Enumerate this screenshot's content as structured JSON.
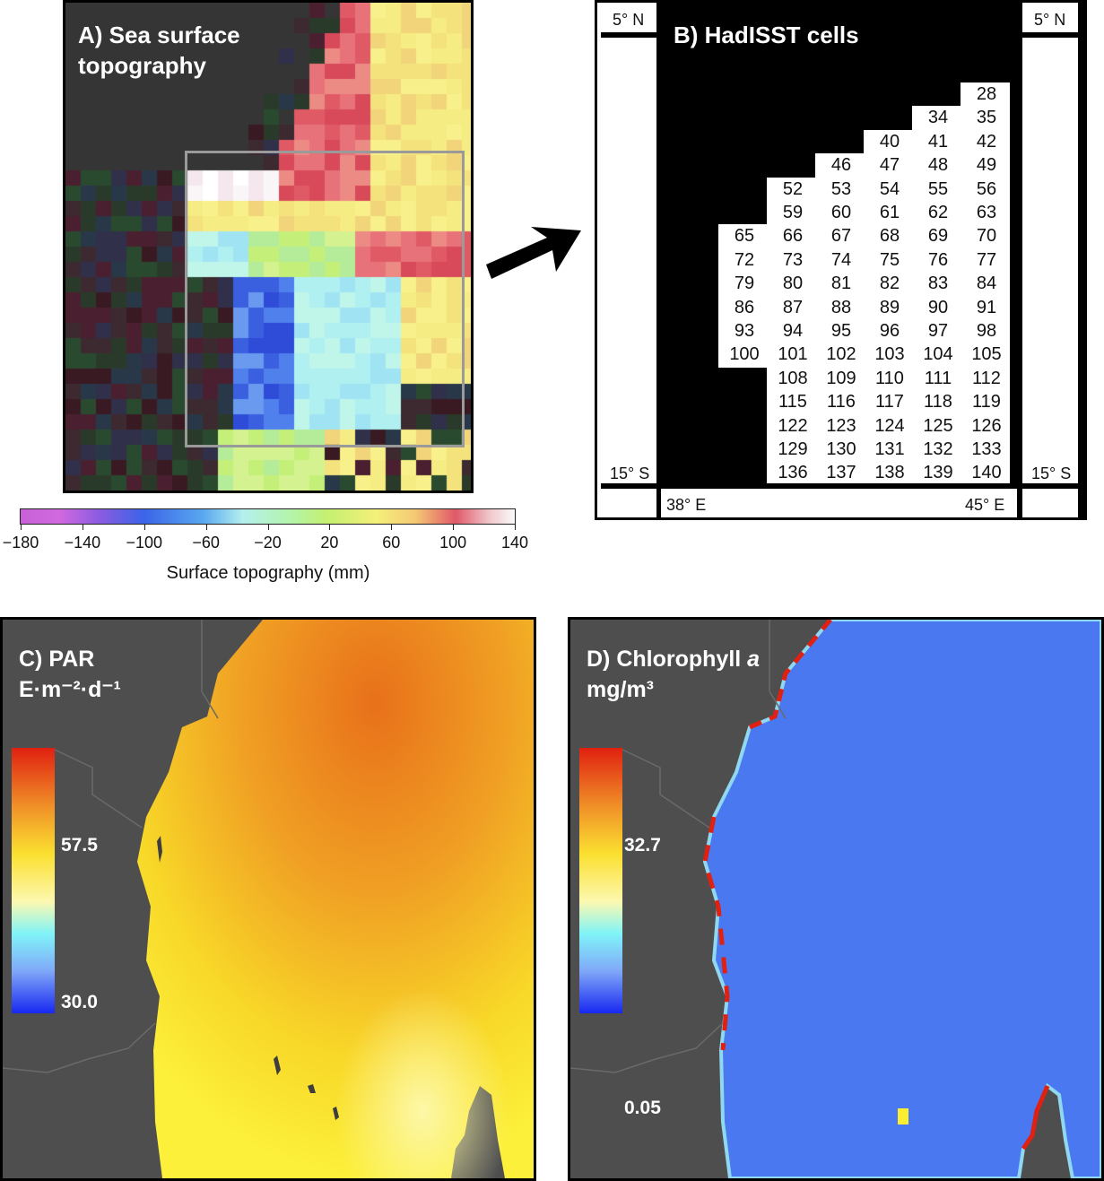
{
  "panel_a": {
    "title_line1": "A) Sea surface",
    "title_line2": "topography",
    "colorbar": {
      "ticks": [
        "−180",
        "−140",
        "−100",
        "−60",
        "−20",
        "20",
        "60",
        "100",
        "140"
      ],
      "tick_values": [
        -180,
        -140,
        -100,
        -60,
        -20,
        20,
        60,
        100,
        140
      ],
      "range": [
        -180,
        140
      ],
      "label": "Surface topography (mm)"
    }
  },
  "arrow": {
    "icon": "arrow-up-right-icon"
  },
  "panel_b": {
    "title": "B) HadISST cells",
    "lat_top": "5° N",
    "lat_bottom": "15° S",
    "lon_left": "38° E",
    "lon_right": "45° E",
    "rows": [
      [
        "",
        "",
        "",
        "",
        "",
        "28"
      ],
      [
        "",
        "",
        "",
        "",
        "34",
        "35"
      ],
      [
        "",
        "",
        "",
        "40",
        "41",
        "42"
      ],
      [
        "",
        "",
        "46",
        "47",
        "48",
        "49"
      ],
      [
        "",
        "52",
        "53",
        "54",
        "55",
        "56"
      ],
      [
        "",
        "59",
        "60",
        "61",
        "62",
        "63"
      ],
      [
        "65",
        "66",
        "67",
        "68",
        "69",
        "70"
      ],
      [
        "72",
        "73",
        "74",
        "75",
        "76",
        "77"
      ],
      [
        "79",
        "80",
        "81",
        "82",
        "83",
        "84"
      ],
      [
        "86",
        "87",
        "88",
        "89",
        "90",
        "91"
      ],
      [
        "93",
        "94",
        "95",
        "96",
        "97",
        "98"
      ],
      [
        "100",
        "101",
        "102",
        "103",
        "104",
        "105"
      ],
      [
        "",
        "108",
        "109",
        "110",
        "111",
        "112"
      ],
      [
        "",
        "115",
        "116",
        "117",
        "118",
        "119"
      ],
      [
        "",
        "122",
        "123",
        "124",
        "125",
        "126"
      ],
      [
        "",
        "129",
        "130",
        "131",
        "132",
        "133"
      ],
      [
        "",
        "136",
        "137",
        "138",
        "139",
        "140"
      ]
    ]
  },
  "panel_c": {
    "title_line1": "C) PAR",
    "title_unit": "E·m⁻²·d⁻¹",
    "colorbar_mid": "57.5",
    "colorbar_min": "30.0"
  },
  "panel_d": {
    "title_prefix": "D) Chlorophyll ",
    "title_italic": "a",
    "title_unit": "mg/m³",
    "colorbar_mid": "32.7",
    "colorbar_min": "0.05"
  },
  "colors": {
    "land": "#4e4e4f",
    "panel_a_bg": "#353536",
    "selection_rect": "#9a9a9a",
    "par_high": "#e8741c",
    "par_low": "#fbee30",
    "chl_ocean": "#4a78f0",
    "chl_coast": "#e02010"
  }
}
